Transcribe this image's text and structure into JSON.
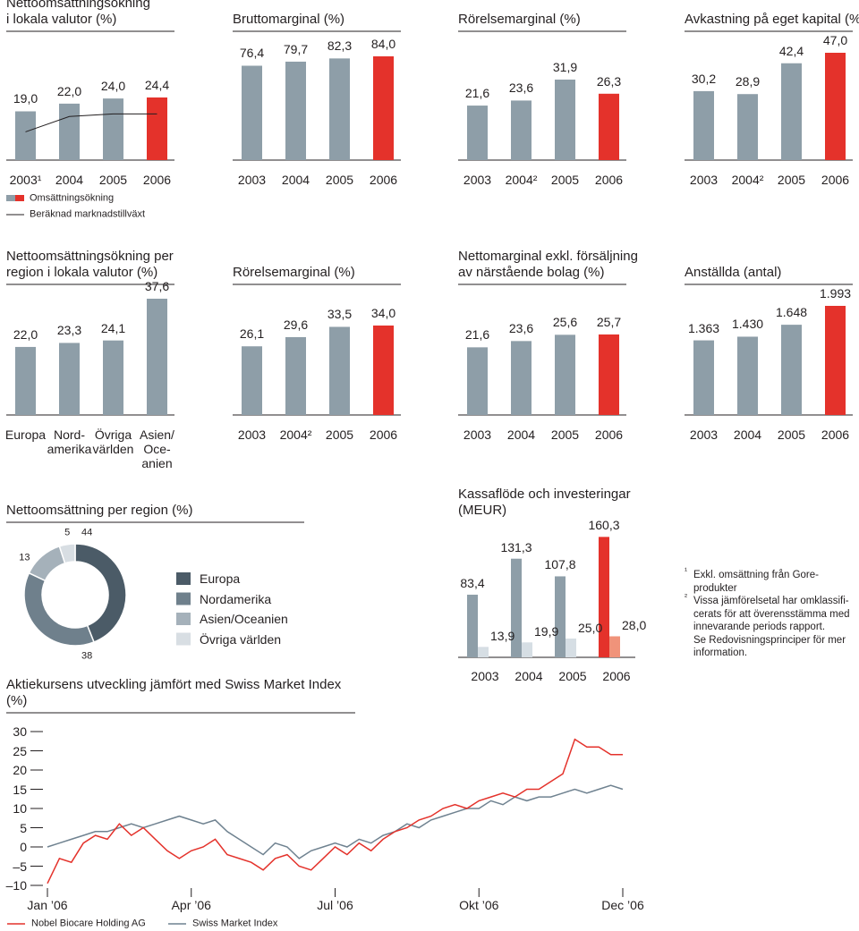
{
  "chart_data": [
    {
      "type": "bar",
      "title": "Nettoomsättningsökning\ni lokala valutor (%)",
      "categories": [
        "2003¹",
        "2004",
        "2005",
        "2006"
      ],
      "series": [
        {
          "name": "Omsättningsökning",
          "values": [
            19.0,
            22.0,
            24.0,
            24.4
          ],
          "value_labels": [
            "19,0",
            "22,0",
            "24,0",
            "24,4"
          ],
          "colors": [
            "#8e9ea8",
            "#8e9ea8",
            "#8e9ea8",
            "#e4322b"
          ]
        },
        {
          "name": "Beräknad marknadstillväxt",
          "color": "#231f20",
          "values": [
            11,
            17,
            18,
            18
          ]
        }
      ],
      "legend": true
    },
    {
      "type": "bar",
      "title": "Bruttomarginal (%)",
      "categories": [
        "2003",
        "2004",
        "2005",
        "2006"
      ],
      "values": [
        76.4,
        79.7,
        82.3,
        84.0
      ],
      "value_labels": [
        "76,4",
        "79,7",
        "82,3",
        "84,0"
      ],
      "colors": [
        "#8e9ea8",
        "#8e9ea8",
        "#8e9ea8",
        "#e4322b"
      ]
    },
    {
      "type": "bar",
      "title": "Rörelsemarginal (%)",
      "categories": [
        "2003",
        "2004²",
        "2005",
        "2006"
      ],
      "values": [
        21.6,
        23.6,
        31.9,
        26.3
      ],
      "value_labels": [
        "21,6",
        "23,6",
        "31,9",
        "26,3"
      ],
      "colors": [
        "#8e9ea8",
        "#8e9ea8",
        "#8e9ea8",
        "#e4322b"
      ]
    },
    {
      "type": "bar",
      "title": "Avkastning på eget kapital (%)",
      "categories": [
        "2003",
        "2004²",
        "2005",
        "2006"
      ],
      "values": [
        30.2,
        28.9,
        42.4,
        47.0
      ],
      "value_labels": [
        "30,2",
        "28,9",
        "42,4",
        "47,0"
      ],
      "colors": [
        "#8e9ea8",
        "#8e9ea8",
        "#8e9ea8",
        "#e4322b"
      ]
    },
    {
      "type": "bar",
      "title": "Nettoomsättningsökning per\nregion i lokala valutor (%)",
      "categories": [
        "Europa",
        "Nord-\namerika",
        "Övriga\nvärlden",
        "Asien/\nOce-\nanien"
      ],
      "values": [
        22.0,
        23.3,
        24.1,
        37.6
      ],
      "value_labels": [
        "22,0",
        "23,3",
        "24,1",
        "37,6"
      ],
      "colors": [
        "#8e9ea8",
        "#8e9ea8",
        "#8e9ea8",
        "#8e9ea8"
      ]
    },
    {
      "type": "bar",
      "title": "Rörelsemarginal (%)",
      "categories": [
        "2003",
        "2004²",
        "2005",
        "2006"
      ],
      "values": [
        26.1,
        29.6,
        33.5,
        34.0
      ],
      "value_labels": [
        "26,1",
        "29,6",
        "33,5",
        "34,0"
      ],
      "colors": [
        "#8e9ea8",
        "#8e9ea8",
        "#8e9ea8",
        "#e4322b"
      ]
    },
    {
      "type": "bar",
      "title": "Nettomarginal exkl. försäljning\nav närstående bolag (%)",
      "categories": [
        "2003",
        "2004",
        "2005",
        "2006"
      ],
      "values": [
        21.6,
        23.6,
        25.6,
        25.7
      ],
      "value_labels": [
        "21,6",
        "23,6",
        "25,6",
        "25,7"
      ],
      "colors": [
        "#8e9ea8",
        "#8e9ea8",
        "#8e9ea8",
        "#e4322b"
      ]
    },
    {
      "type": "bar",
      "title": "Anställda (antal)",
      "categories": [
        "2003",
        "2004",
        "2005",
        "2006"
      ],
      "values": [
        1363,
        1430,
        1648,
        1993
      ],
      "value_labels": [
        "1.363",
        "1.430",
        "1.648",
        "1.993"
      ],
      "colors": [
        "#8e9ea8",
        "#8e9ea8",
        "#8e9ea8",
        "#e4322b"
      ]
    },
    {
      "type": "donut",
      "title": "Nettoomsättning per region (%)",
      "categories": [
        "Europa",
        "Nordamerika",
        "Asien/Oceanien",
        "Övriga världen"
      ],
      "values": [
        44,
        38,
        13,
        5
      ],
      "colors": [
        "#4b5b67",
        "#6f808c",
        "#a5b1ba",
        "#d8dee3"
      ]
    },
    {
      "type": "groupedbar",
      "title": "Kassaflöde och investeringar\n(MEUR)",
      "categories": [
        "2003",
        "2004",
        "2005",
        "2006"
      ],
      "series": [
        {
          "values": [
            83.4,
            131.3,
            107.8,
            160.3
          ],
          "value_labels": [
            "83,4",
            "131,3",
            "107,8",
            "160,3"
          ],
          "colors": [
            "#8e9ea8",
            "#8e9ea8",
            "#8e9ea8",
            "#e4322b"
          ]
        },
        {
          "values": [
            13.9,
            19.9,
            25.0,
            28.0
          ],
          "value_labels": [
            "13,9",
            "19,9",
            "25,0",
            "28,0"
          ],
          "colors": [
            "#d6dee4",
            "#d6dee4",
            "#d6dee4",
            "#f0937a"
          ]
        }
      ]
    },
    {
      "type": "line",
      "title": "Aktiekursens utveckling jämfört med Swiss Market Index (%)",
      "x": [
        0,
        0.25,
        0.5,
        0.75,
        1,
        1.25,
        1.5,
        1.75,
        2,
        2.25,
        2.5,
        2.75,
        3,
        3.25,
        3.5,
        3.75,
        4,
        4.25,
        4.5,
        4.75,
        5,
        5.25,
        5.5,
        5.75,
        6,
        6.25,
        6.5,
        6.75,
        7,
        7.25,
        7.5,
        7.75,
        8,
        8.25,
        8.5,
        8.75,
        9,
        9.25,
        9.5,
        9.75,
        10,
        10.25,
        10.5,
        10.75,
        11,
        11.25,
        11.5,
        11.75,
        12
      ],
      "xlim": [
        0,
        12
      ],
      "xticks": [
        {
          "value": 0,
          "label": "Jan ’06"
        },
        {
          "value": 3,
          "label": "Apr ’06"
        },
        {
          "value": 6,
          "label": "Jul ’06"
        },
        {
          "value": 9,
          "label": "Okt ’06"
        },
        {
          "value": 12,
          "label": "Dec ’06"
        }
      ],
      "ylim": [
        -10,
        30
      ],
      "yticks": [
        30,
        25,
        20,
        15,
        10,
        5,
        0,
        {
          "value": -5,
          "label": "–5"
        },
        {
          "value": -10,
          "label": "–10"
        }
      ],
      "series": [
        {
          "name": "Nobel Biocare Holding AG",
          "color": "#e4322b",
          "values": [
            -9.5,
            -3,
            -4,
            1,
            3,
            2,
            6,
            3,
            5,
            2,
            -1,
            -3,
            -1,
            0,
            2,
            -2,
            -3,
            -4,
            -6,
            -3,
            -2,
            -5,
            -6,
            -3,
            0,
            -2,
            1,
            -1,
            2,
            4,
            5,
            7,
            8,
            10,
            11,
            10,
            12,
            13,
            14,
            13,
            15,
            15,
            17,
            19,
            28,
            26,
            26,
            24,
            24
          ]
        },
        {
          "name": "Swiss Market Index",
          "color": "#6f8290",
          "values": [
            0,
            1,
            2,
            3,
            4,
            4,
            5,
            6,
            5,
            6,
            7,
            8,
            7,
            6,
            7,
            4,
            2,
            0,
            -2,
            1,
            0,
            -3,
            -1,
            0,
            1,
            0,
            2,
            1,
            3,
            4,
            6,
            5,
            7,
            8,
            9,
            10,
            10,
            12,
            11,
            13,
            12,
            13,
            13,
            14,
            15,
            14,
            15,
            16,
            15
          ]
        }
      ]
    }
  ],
  "footnotes": [
    {
      "mark": "¹",
      "text": "Exkl. omsättning från Gore-\nprodukter"
    },
    {
      "mark": "²",
      "text": "Vissa jämförelsetal har omklassifi-\ncerats för att överensstämma med\ninnevarande periods rapport.\nSe Redovisningsprinciper för mer\ninformation."
    }
  ]
}
